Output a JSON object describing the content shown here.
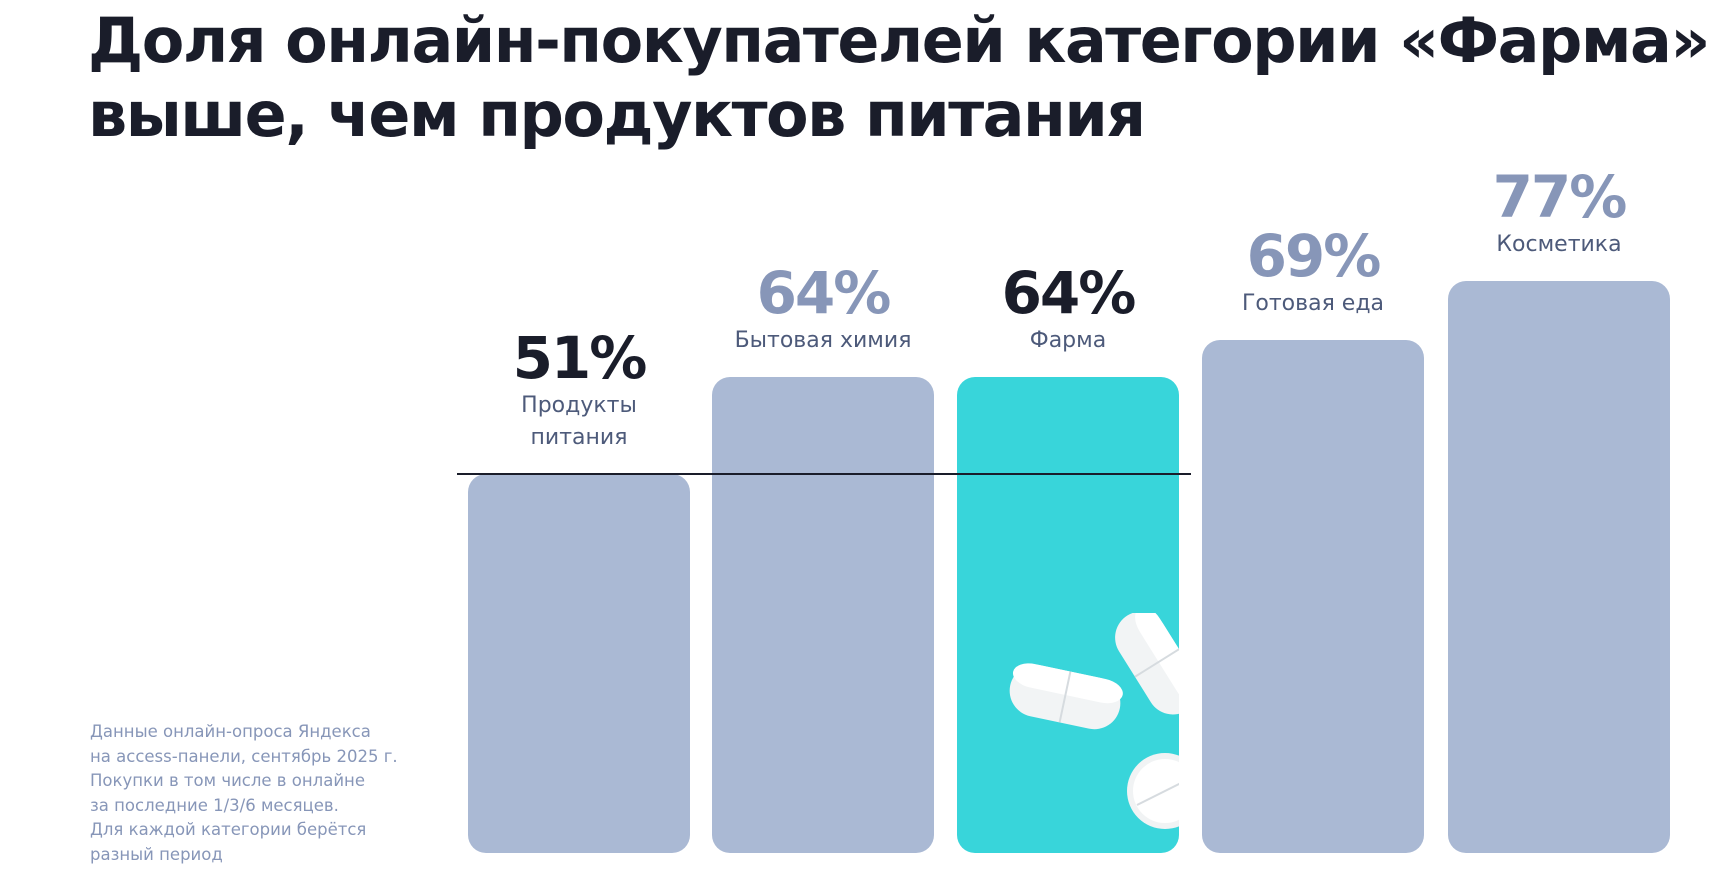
{
  "title": [
    "Доля онлайн-покупателей категории «Фарма»",
    "выше, чем продуктов питания"
  ],
  "chart_data": {
    "type": "bar",
    "title": "Доля онлайн-покупателей категории «Фарма» выше, чем продуктов питания",
    "categories": [
      "Продукты питания",
      "Бытовая химия",
      "Фарма",
      "Готовая еда",
      "Косметика"
    ],
    "category_lines": [
      [
        "Продукты",
        "питания"
      ],
      [
        "Бытовая химия"
      ],
      [
        "Фарма"
      ],
      [
        "Готовая еда"
      ],
      [
        "Косметика"
      ]
    ],
    "values": [
      51,
      64,
      64,
      69,
      77
    ],
    "labels": [
      "51%",
      "64%",
      "64%",
      "69%",
      "77%"
    ],
    "highlight": 2,
    "reference_line": 51,
    "ylim": [
      0,
      100
    ],
    "grid": false
  },
  "colors": {
    "bar": "#aab9d4",
    "highlight": "#38d5da",
    "pct_muted": "#8796b8",
    "pct_dark": "#1a1d2a"
  },
  "dark_labels": [
    0,
    2
  ],
  "footnote": [
    "Данные онлайн-опроса Яндекса",
    "на access-панели, сентябрь 2025 г.",
    "Покупки в том числе в онлайне",
    "за последние 1/3/6 месяцев.",
    "Для каждой категории берётся",
    "разный период"
  ]
}
